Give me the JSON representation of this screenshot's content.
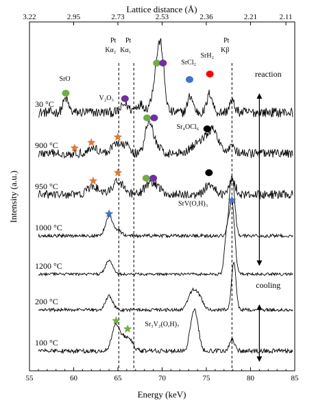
{
  "chart_data": {
    "type": "line",
    "xlabel": "Energy (keV)",
    "ylabel": "Intensity (a.u.)",
    "top_xlabel": "Lattice distance (Å)",
    "xlim": [
      55,
      85
    ],
    "x_ticks": [
      55,
      60,
      65,
      70,
      75,
      80,
      85
    ],
    "top_ticks": [
      {
        "label": "3.22",
        "x": 55
      },
      {
        "label": "2.95",
        "x": 60
      },
      {
        "label": "2.73",
        "x": 65
      },
      {
        "label": "2.53",
        "x": 70
      },
      {
        "label": "2.36",
        "x": 75
      },
      {
        "label": "2.21",
        "x": 80
      },
      {
        "label": "2.11",
        "x": 84
      }
    ],
    "reference_lines": [
      {
        "x": 65.1,
        "label_top": "Pt",
        "label_bottom": "Kα₂"
      },
      {
        "x": 66.8,
        "label_top": "Pt",
        "label_bottom": "Kα₁"
      },
      {
        "x": 77.9,
        "label_top": "Pt",
        "label_bottom": "Kβ"
      }
    ],
    "series": [
      {
        "name": "30 °C",
        "baseline": 0.92,
        "noise": 0.018,
        "peaks": [
          [
            59.1,
            0.05,
            0.3
          ],
          [
            65.8,
            0.03,
            0.4
          ],
          [
            67.5,
            0.03,
            0.5
          ],
          [
            69.5,
            0.16,
            0.5
          ],
          [
            69.9,
            0.13,
            0.35
          ],
          [
            73.2,
            0.06,
            0.3
          ],
          [
            75.4,
            0.07,
            0.3
          ],
          [
            77.9,
            0.04,
            0.3
          ]
        ]
      },
      {
        "name": "900 °C",
        "baseline": 0.77,
        "noise": 0.016,
        "peaks": [
          [
            62.2,
            0.02,
            0.6
          ],
          [
            64.8,
            0.04,
            0.5
          ],
          [
            66.0,
            0.03,
            0.4
          ],
          [
            68.5,
            0.11,
            0.4
          ],
          [
            69.3,
            0.03,
            0.5
          ],
          [
            75.0,
            0.06,
            1.2
          ],
          [
            75.8,
            0.04,
            0.4
          ],
          [
            77.9,
            0.03,
            0.3
          ]
        ]
      },
      {
        "name": "950 °C",
        "baseline": 0.62,
        "noise": 0.016,
        "peaks": [
          [
            62.2,
            0.03,
            0.6
          ],
          [
            65.0,
            0.05,
            0.6
          ],
          [
            68.4,
            0.03,
            0.5
          ],
          [
            69.3,
            0.03,
            0.6
          ],
          [
            75.4,
            0.04,
            0.5
          ],
          [
            77.9,
            0.05,
            0.4
          ]
        ]
      },
      {
        "name": "1000 °C",
        "baseline": 0.47,
        "noise": 0.006,
        "peaks": [
          [
            64.0,
            0.07,
            0.4
          ],
          [
            65.0,
            0.02,
            0.4
          ],
          [
            77.9,
            0.22,
            0.3
          ]
        ]
      },
      {
        "name": "1200 °C",
        "baseline": 0.33,
        "noise": 0.005,
        "peaks": [
          [
            64.0,
            0.05,
            0.4
          ],
          [
            77.3,
            0.14,
            0.25
          ],
          [
            77.9,
            0.26,
            0.3
          ]
        ]
      },
      {
        "name": "200 °C",
        "baseline": 0.2,
        "noise": 0.006,
        "peaks": [
          [
            64.0,
            0.05,
            0.4
          ],
          [
            73.5,
            0.07,
            0.5
          ],
          [
            74.3,
            0.03,
            0.4
          ],
          [
            78.1,
            0.17,
            0.25
          ]
        ]
      },
      {
        "name": "100 °C",
        "baseline": 0.05,
        "noise": 0.008,
        "peaks": [
          [
            64.8,
            0.1,
            0.45
          ],
          [
            65.8,
            0.04,
            0.4
          ],
          [
            66.5,
            0.03,
            0.35
          ],
          [
            73.5,
            0.13,
            0.35
          ],
          [
            74.0,
            0.06,
            0.3
          ],
          [
            77.9,
            0.04,
            0.3
          ]
        ]
      }
    ],
    "markers": [
      {
        "x": 59.1,
        "y": 0.99,
        "shape": "dot",
        "color": "#70ad47"
      },
      {
        "x": 65.8,
        "y": 0.97,
        "shape": "dot",
        "color": "#7030a0"
      },
      {
        "x": 69.4,
        "y": 1.1,
        "shape": "dot",
        "color": "#70ad47"
      },
      {
        "x": 70.1,
        "y": 1.1,
        "shape": "dot",
        "color": "#7030a0"
      },
      {
        "x": 73.1,
        "y": 1.04,
        "shape": "dot",
        "color": "#4472c4"
      },
      {
        "x": 75.4,
        "y": 1.06,
        "shape": "dot",
        "color": "#ff0000"
      },
      {
        "x": 68.3,
        "y": 0.9,
        "shape": "dot",
        "color": "#70ad47"
      },
      {
        "x": 69.1,
        "y": 0.9,
        "shape": "dot",
        "color": "#7030a0"
      },
      {
        "x": 75.1,
        "y": 0.86,
        "shape": "dot",
        "color": "#000000"
      },
      {
        "x": 60.1,
        "y": 0.79,
        "shape": "star",
        "color": "#e07b39"
      },
      {
        "x": 62.0,
        "y": 0.81,
        "shape": "star",
        "color": "#e07b39"
      },
      {
        "x": 65.0,
        "y": 0.83,
        "shape": "star",
        "color": "#e07b39"
      },
      {
        "x": 62.2,
        "y": 0.67,
        "shape": "star",
        "color": "#e07b39"
      },
      {
        "x": 65.0,
        "y": 0.7,
        "shape": "star",
        "color": "#e07b39"
      },
      {
        "x": 68.2,
        "y": 0.68,
        "shape": "dot",
        "color": "#70ad47"
      },
      {
        "x": 69.0,
        "y": 0.68,
        "shape": "dot",
        "color": "#7030a0"
      },
      {
        "x": 75.3,
        "y": 0.7,
        "shape": "dot",
        "color": "#000000"
      },
      {
        "x": 64.0,
        "y": 0.55,
        "shape": "star",
        "color": "#4472c4"
      },
      {
        "x": 77.9,
        "y": 0.6,
        "shape": "star",
        "color": "#4472c4"
      },
      {
        "x": 64.8,
        "y": 0.16,
        "shape": "star",
        "color": "#70ad47"
      },
      {
        "x": 66.1,
        "y": 0.13,
        "shape": "star",
        "color": "#70ad47"
      }
    ],
    "annotations": [
      {
        "text": "SrO",
        "x": 59.0,
        "y": 1.035
      },
      {
        "text": "V₂O₃",
        "x": 63.7,
        "y": 0.965
      },
      {
        "text": "SrCl₂",
        "x": 73.0,
        "y": 1.095
      },
      {
        "text": "SrH₂",
        "x": 75.1,
        "y": 1.12
      },
      {
        "text": "Sr₄OCl₆",
        "x": 72.9,
        "y": 0.86
      },
      {
        "text": "SrV(O,H)₃",
        "x": 73.5,
        "y": 0.58
      },
      {
        "text": "Sr₃V₂(O,H)₇",
        "x": 70.0,
        "y": 0.14
      }
    ],
    "phases": [
      {
        "text": "reaction",
        "x": 82.0,
        "y": 1.05
      },
      {
        "text": "cooling",
        "x": 82.0,
        "y": 0.28
      }
    ],
    "arrows": [
      {
        "x": 81.0,
        "y1": 0.99,
        "y2": 0.36
      },
      {
        "x": 81.0,
        "y1": 0.22,
        "y2": 0.01
      }
    ]
  }
}
